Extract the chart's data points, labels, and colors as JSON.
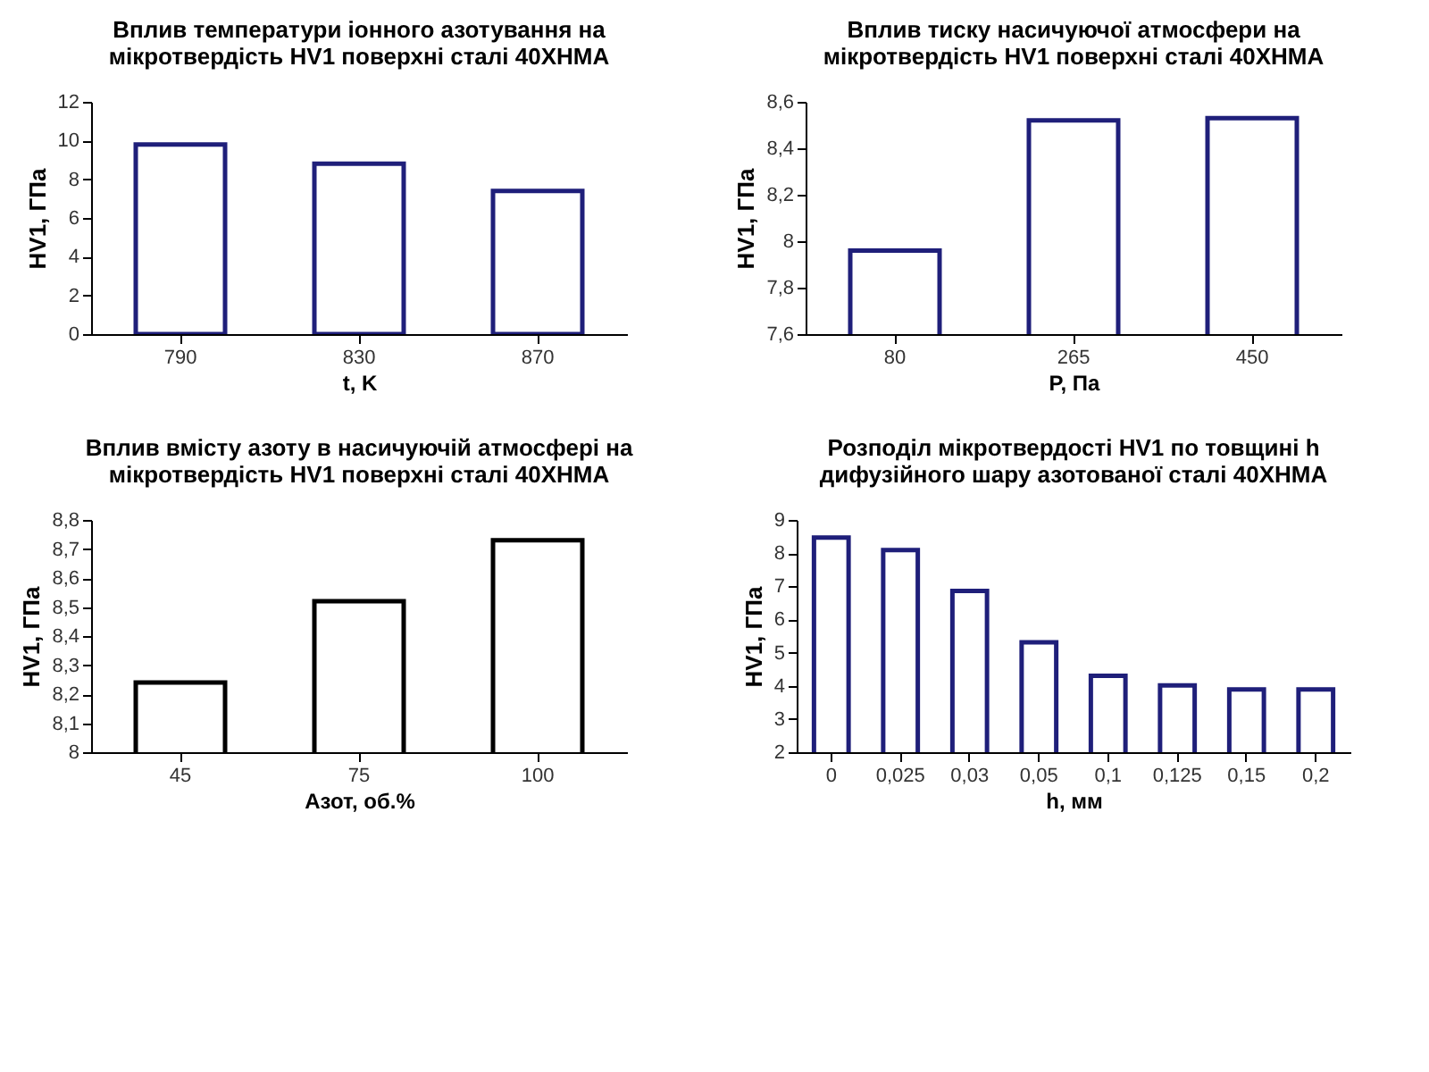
{
  "chart_data": [
    {
      "type": "bar",
      "title": "Вплив температури іонного азотування на мікротвердість HV1 поверхні сталі 40ХНМА",
      "xlabel": "t, K",
      "ylabel": "HV1, ГПа",
      "categories": [
        "790",
        "830",
        "870"
      ],
      "series": [
        {
          "color": "#1f1f7a",
          "values": [
            9.8,
            8.8,
            7.4
          ]
        }
      ],
      "ylim": [
        0,
        12
      ],
      "yticks": [
        0,
        2,
        4,
        6,
        8,
        10,
        12
      ]
    },
    {
      "type": "bar",
      "title": "Вплив тиску насичуючої атмосфери на мікротвердість HV1 поверхні сталі 40ХНМА",
      "xlabel": "P, Па",
      "ylabel": "HV1, ГПа",
      "categories": [
        "80",
        "265",
        "450"
      ],
      "series": [
        {
          "color": "#1f1f7a",
          "values": [
            7.96,
            8.52,
            8.53
          ]
        }
      ],
      "ylim": [
        7.6,
        8.6
      ],
      "yticks": [
        {
          "value": 7.6,
          "label": "7,6"
        },
        {
          "value": 7.8,
          "label": "7,8"
        },
        8,
        {
          "value": 8.2,
          "label": "8,2"
        },
        {
          "value": 8.4,
          "label": "8,4"
        },
        {
          "value": 8.6,
          "label": "8,6"
        }
      ]
    },
    {
      "type": "bar",
      "title": "Вплив вмісту азоту в насичуючій атмосфері на мікротвердість HV1 поверхні сталі 40ХНМА",
      "xlabel": "Азот, об.%",
      "ylabel": "HV1, ГПа",
      "categories": [
        "45",
        "75",
        "100"
      ],
      "series": [
        {
          "color": "#000000",
          "values": [
            8.24,
            8.52,
            8.73
          ]
        }
      ],
      "ylim": [
        8,
        8.8
      ],
      "yticks": [
        8,
        {
          "value": 8.1,
          "label": "8,1"
        },
        {
          "value": 8.2,
          "label": "8,2"
        },
        {
          "value": 8.3,
          "label": "8,3"
        },
        {
          "value": 8.4,
          "label": "8,4"
        },
        {
          "value": 8.5,
          "label": "8,5"
        },
        {
          "value": 8.6,
          "label": "8,6"
        },
        {
          "value": 8.7,
          "label": "8,7"
        },
        {
          "value": 8.8,
          "label": "8,8"
        }
      ]
    },
    {
      "type": "bar",
      "title": "Розподіл мікротвердості HV1 по товщині h дифузійного шару азотованої сталі 40ХНМА",
      "xlabel": "h, мм",
      "ylabel": "HV1, ГПа",
      "categories": [
        "0",
        "0,025",
        "0,03",
        "0,05",
        "0,1",
        "0,125",
        "0,15",
        "0,2"
      ],
      "series": [
        {
          "color": "#1f1f7a",
          "values": [
            8.47,
            8.09,
            6.86,
            5.31,
            4.3,
            4.01,
            3.89,
            3.89
          ]
        }
      ],
      "ylim": [
        2,
        9
      ],
      "yticks": [
        2,
        3,
        4,
        5,
        6,
        7,
        8,
        9
      ]
    }
  ]
}
